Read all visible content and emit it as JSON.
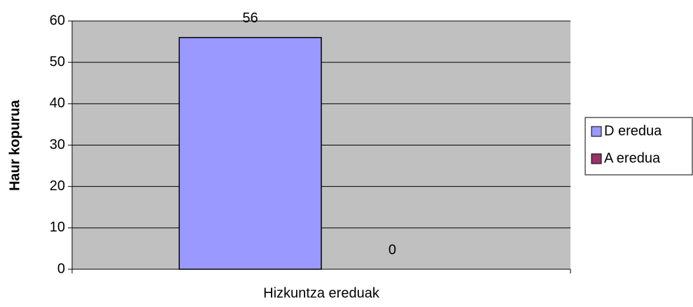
{
  "chart_data": {
    "type": "bar",
    "xlabel": "Hizkuntza ereduak",
    "ylabel": "Haur kopurua",
    "categories": [
      null
    ],
    "series": [
      {
        "name": "D eredua",
        "color": "#9999ff",
        "values": [
          56
        ]
      },
      {
        "name": "A eredua",
        "color": "#993366",
        "values": [
          0
        ]
      }
    ],
    "ylim": [
      0,
      60
    ],
    "yticks": [
      0,
      10,
      20,
      30,
      40,
      50,
      60
    ],
    "grid": true,
    "legend": "right"
  }
}
